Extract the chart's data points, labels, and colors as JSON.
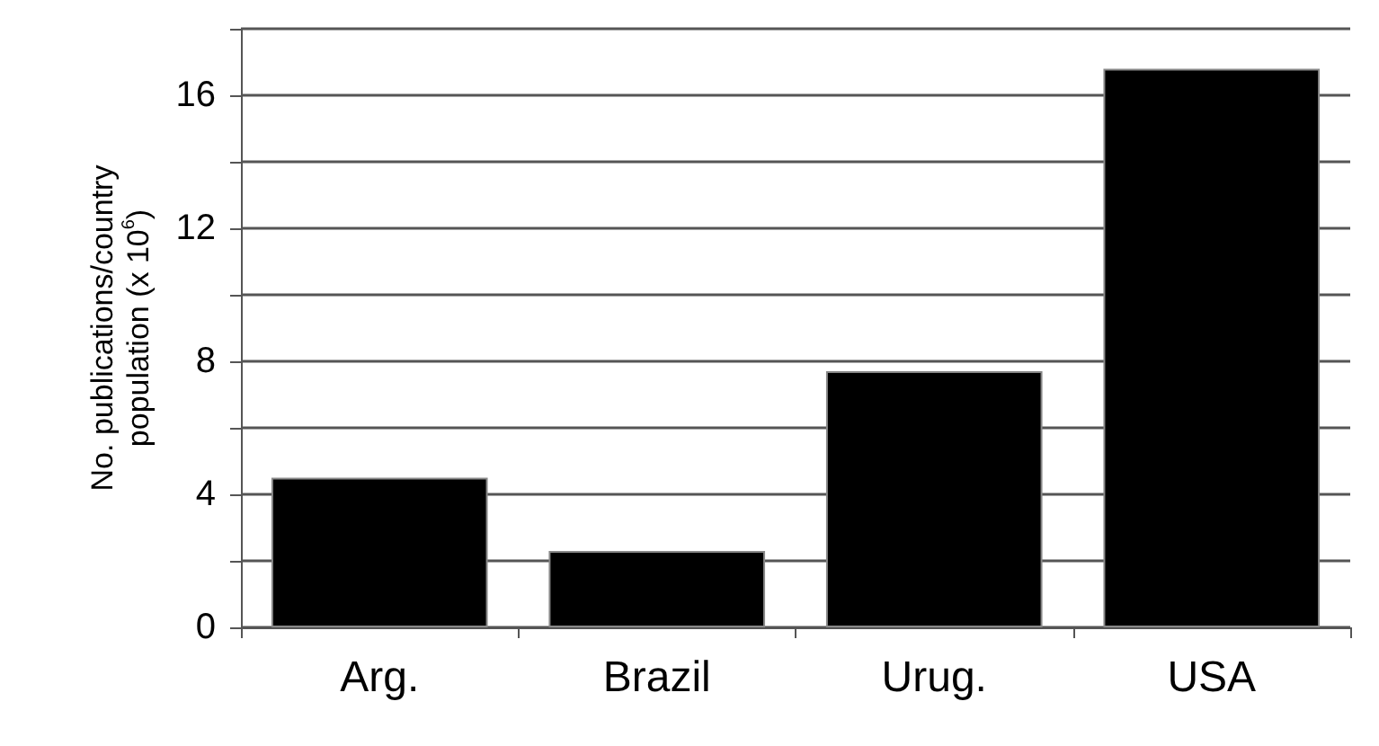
{
  "chart_data": {
    "type": "bar",
    "ylabel": "No. publications/country population (x 10$^{6}$)",
    "categories": [
      "Arg.",
      "Brazil",
      "Urug.",
      "USA"
    ],
    "values": [
      4.5,
      2.3,
      7.7,
      16.8
    ],
    "color": "#000000",
    "ylim": [
      0,
      18
    ],
    "yticks": [
      0,
      {
        "value": 2,
        "label": null
      },
      4,
      {
        "value": 6,
        "label": null
      },
      8,
      {
        "value": 10,
        "label": null
      },
      12,
      {
        "value": 14,
        "label": null
      },
      16,
      {
        "value": 18,
        "label": null
      }
    ],
    "grid": "y"
  }
}
